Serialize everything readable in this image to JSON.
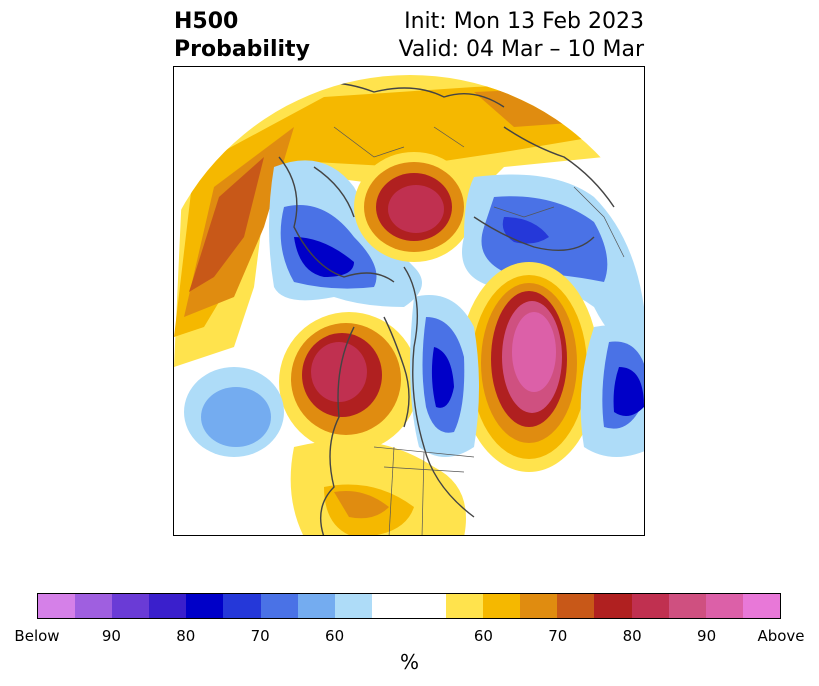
{
  "title": {
    "left_line1": "H500",
    "left_line2": "Probability",
    "right_line1": "Init: Mon 13 Feb 2023",
    "right_line2": "Valid: 04 Mar – 10 Mar"
  },
  "colorbar": {
    "colors": [
      "#d580e8",
      "#9f5fe0",
      "#6a3bd6",
      "#3a1fcc",
      "#0000c8",
      "#2538d9",
      "#4a72e6",
      "#74acf0",
      "#aedcf8",
      "#ffffff",
      "#ffffff",
      "#ffe34d",
      "#f5b800",
      "#e08c10",
      "#c85818",
      "#b02020",
      "#c03050",
      "#cf5080",
      "#dc60a8",
      "#e878d8"
    ],
    "tick_labels": [
      "Below",
      "90",
      "80",
      "70",
      "60",
      "60",
      "70",
      "80",
      "90",
      "Above"
    ],
    "units": "%"
  }
}
